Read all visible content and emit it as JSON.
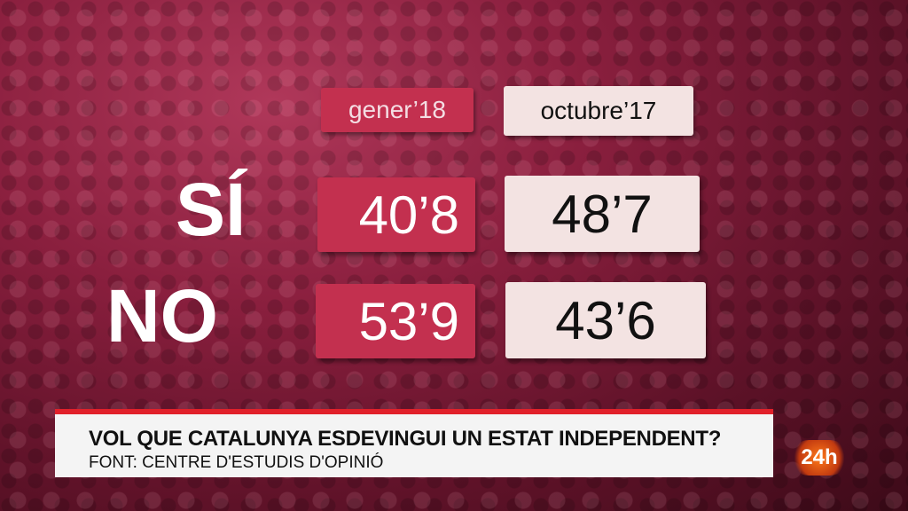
{
  "table": {
    "columns": [
      "gener’18",
      "octubre’17"
    ],
    "rows": [
      {
        "label": "SÍ",
        "values": [
          "40’8",
          "48’7"
        ]
      },
      {
        "label": "NO",
        "values": [
          "53’9",
          "43’6"
        ]
      }
    ]
  },
  "lower_third": {
    "question": "VOL QUE CATALUNYA ESDEVINGUI UN ESTAT INDEPENDENT?",
    "source": "FONT: CENTRE D'ESTUDIS D'OPINIÓ"
  },
  "channel_logo": "24h",
  "colors": {
    "accent_red": "#c3304f",
    "light_cell": "#f3e3e2",
    "band_red": "#e1202a"
  }
}
